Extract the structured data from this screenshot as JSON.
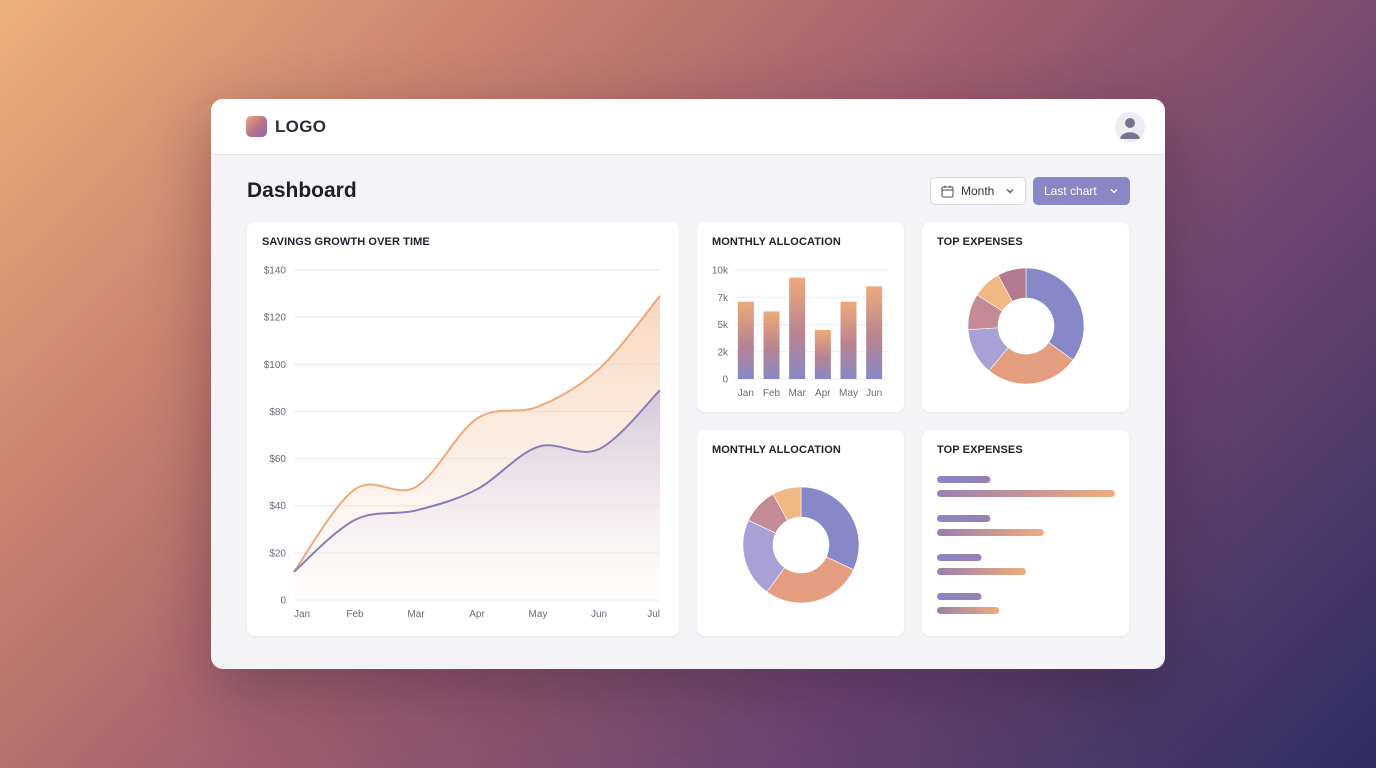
{
  "header": {
    "logo_text": "LOGO"
  },
  "page": {
    "title": "Dashboard"
  },
  "controls": {
    "period_label": "Month",
    "chart_select_label": "Last chart"
  },
  "icons": {
    "calendar": "calendar-icon",
    "chevron": "chevron-down-icon",
    "user": "user-icon"
  },
  "colors": {
    "accent": "#8a87c7",
    "orange": "#eeaa7b",
    "purple": "#8c7bb5"
  },
  "cards": {
    "savings": {
      "title": "SAVINGS GROWTH OVER TIME"
    },
    "allocation_bar": {
      "title": "MONTHLY ALLOCATION"
    },
    "expenses_donut": {
      "title": "TOP EXPENSES"
    },
    "allocation_donut": {
      "title": "MONTHLY ALLOCATION"
    },
    "expenses_bars": {
      "title": "TOP EXPENSES"
    }
  },
  "chart_data": [
    {
      "type": "area",
      "title": "SAVINGS GROWTH OVER TIME",
      "categories": [
        "Jan",
        "Feb",
        "Mar",
        "Apr",
        "May",
        "Jun",
        "Jul"
      ],
      "y_ticks": [
        "0",
        "$20",
        "$40",
        "$60",
        "$80",
        "$100",
        "$120",
        "$140"
      ],
      "ylim": [
        0,
        140
      ],
      "grid": true,
      "series": [
        {
          "values": [
            12,
            47,
            48,
            77,
            82,
            98,
            129
          ],
          "color": "#eeaa7b"
        },
        {
          "values": [
            12,
            34,
            38,
            47,
            65,
            64,
            89
          ],
          "color": "#8c7bb5"
        }
      ]
    },
    {
      "type": "bar",
      "title": "MONTHLY ALLOCATION",
      "categories": [
        "Jan",
        "Feb",
        "Mar",
        "Apr",
        "May",
        "Jun"
      ],
      "y_ticks": [
        "0",
        "2k",
        "5k",
        "7k",
        "10k"
      ],
      "ylim": [
        0,
        10
      ],
      "grid": true,
      "values": [
        7.1,
        6.2,
        9.3,
        4.5,
        7.1,
        8.5
      ]
    },
    {
      "type": "pie",
      "title": "TOP EXPENSES",
      "donut": true,
      "values": [
        35,
        26,
        13,
        10,
        8,
        8
      ],
      "colors": [
        "#8688c7",
        "#e49d7e",
        "#a9a1d5",
        "#c48b96",
        "#f0b882",
        "#b37a8f"
      ]
    },
    {
      "type": "pie",
      "title": "MONTHLY ALLOCATION",
      "donut": true,
      "values": [
        32,
        28,
        22,
        10,
        8
      ],
      "colors": [
        "#8688c7",
        "#e49d7e",
        "#a9a1d5",
        "#c48b96",
        "#f0b882"
      ]
    },
    {
      "type": "bar",
      "title": "TOP EXPENSES",
      "orientation": "horizontal",
      "groups": [
        {
          "values": [
            30,
            100
          ]
        },
        {
          "values": [
            30,
            60
          ]
        },
        {
          "values": [
            25,
            50
          ]
        },
        {
          "values": [
            25,
            35
          ]
        }
      ]
    }
  ]
}
